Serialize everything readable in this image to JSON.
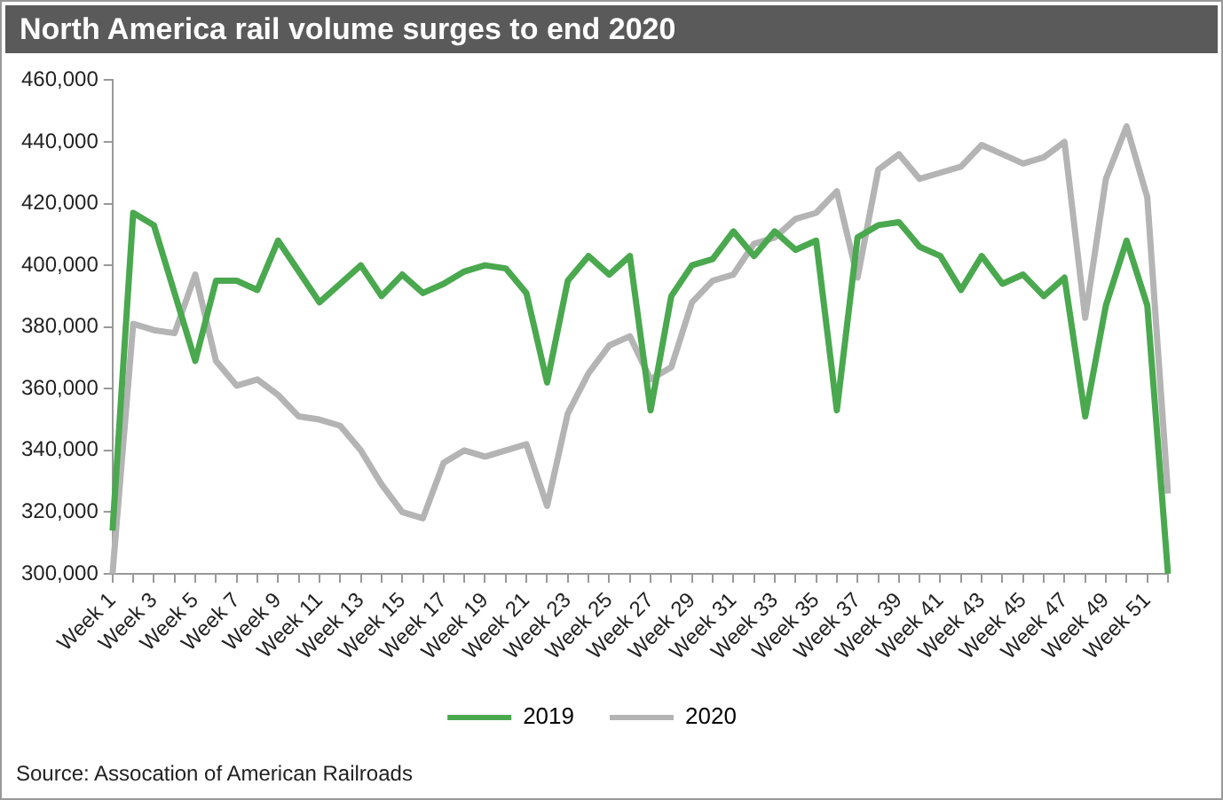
{
  "chart_data": {
    "type": "line",
    "title": "North America rail volume surges to end 2020",
    "categories": [
      "Week 1",
      null,
      "Week 3",
      null,
      "Week 5",
      null,
      "Week 7",
      null,
      "Week 9",
      null,
      "Week 11",
      null,
      "Week 13",
      null,
      "Week 15",
      null,
      "Week 17",
      null,
      "Week 19",
      null,
      "Week 21",
      null,
      "Week 23",
      null,
      "Week 25",
      null,
      "Week 27",
      null,
      "Week 29",
      null,
      "Week 31",
      null,
      "Week 33",
      null,
      "Week 35",
      null,
      "Week 37",
      null,
      "Week 39",
      null,
      "Week 41",
      null,
      "Week 43",
      null,
      "Week 45",
      null,
      "Week 47",
      null,
      "Week 49",
      null,
      "Week 51",
      null
    ],
    "series": [
      {
        "name": "2019",
        "color": "#4aa84f",
        "values": [
          314000,
          417000,
          413000,
          391000,
          369000,
          395000,
          395000,
          392000,
          408000,
          398000,
          388000,
          394000,
          400000,
          390000,
          397000,
          391000,
          394000,
          398000,
          400000,
          399000,
          391000,
          362000,
          395000,
          403000,
          397000,
          403000,
          353000,
          390000,
          400000,
          402000,
          411000,
          403000,
          411000,
          405000,
          408000,
          353000,
          409000,
          413000,
          414000,
          406000,
          403000,
          392000,
          403000,
          394000,
          397000,
          390000,
          396000,
          351000,
          387000,
          408000,
          387000,
          300000
        ]
      },
      {
        "name": "2020",
        "color": "#b4b4b4",
        "values": [
          300000,
          381000,
          379000,
          378000,
          397000,
          369000,
          361000,
          363000,
          358000,
          351000,
          350000,
          348000,
          340000,
          329000,
          320000,
          318000,
          336000,
          340000,
          338000,
          340000,
          342000,
          322000,
          352000,
          365000,
          374000,
          377000,
          363000,
          367000,
          388000,
          395000,
          397000,
          407000,
          409000,
          415000,
          417000,
          424000,
          396000,
          431000,
          436000,
          428000,
          430000,
          432000,
          439000,
          436000,
          433000,
          435000,
          440000,
          383000,
          428000,
          445000,
          422000,
          326000
        ]
      }
    ],
    "ylim": [
      300000,
      460000
    ],
    "yticks": [
      {
        "value": 300000,
        "label": "300,000"
      },
      {
        "value": 320000,
        "label": "320,000"
      },
      {
        "value": 340000,
        "label": "340,000"
      },
      {
        "value": 360000,
        "label": "360,000"
      },
      {
        "value": 380000,
        "label": "380,000"
      },
      {
        "value": 400000,
        "label": "400,000"
      },
      {
        "value": 420000,
        "label": "420,000"
      },
      {
        "value": 440000,
        "label": "440,000"
      },
      {
        "value": 460000,
        "label": "460,000"
      }
    ],
    "grid": false,
    "legend": "bottom",
    "marker": "none",
    "line_style": "solid",
    "annotations": [
      "Source: Assocation of American Railroads"
    ]
  }
}
